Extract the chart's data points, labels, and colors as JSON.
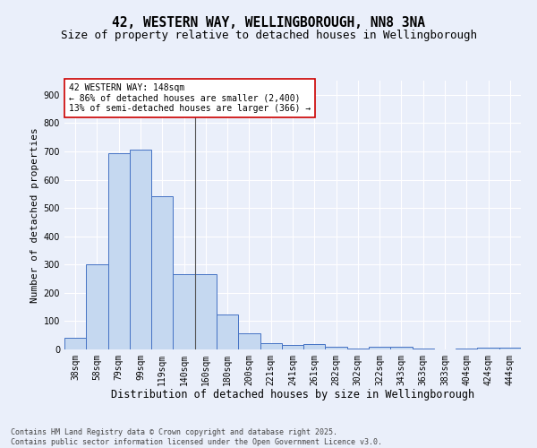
{
  "title1": "42, WESTERN WAY, WELLINGBOROUGH, NN8 3NA",
  "title2": "Size of property relative to detached houses in Wellingborough",
  "xlabel": "Distribution of detached houses by size in Wellingborough",
  "ylabel": "Number of detached properties",
  "categories": [
    "38sqm",
    "58sqm",
    "79sqm",
    "99sqm",
    "119sqm",
    "140sqm",
    "160sqm",
    "180sqm",
    "200sqm",
    "221sqm",
    "241sqm",
    "261sqm",
    "282sqm",
    "302sqm",
    "322sqm",
    "343sqm",
    "363sqm",
    "383sqm",
    "404sqm",
    "424sqm",
    "444sqm"
  ],
  "values": [
    42,
    300,
    695,
    706,
    540,
    265,
    265,
    122,
    57,
    22,
    15,
    18,
    8,
    2,
    10,
    10,
    2,
    1,
    2,
    5,
    6
  ],
  "bar_color": "#c5d8f0",
  "bar_edge_color": "#4472c4",
  "annotation_text": "42 WESTERN WAY: 148sqm\n← 86% of detached houses are smaller (2,400)\n13% of semi-detached houses are larger (366) →",
  "annotation_box_color": "#ffffff",
  "annotation_box_edge": "#cc0000",
  "vline_x": 5.5,
  "ylim": [
    0,
    950
  ],
  "yticks": [
    0,
    100,
    200,
    300,
    400,
    500,
    600,
    700,
    800,
    900
  ],
  "background_color": "#eaeffa",
  "plot_background": "#eaeffa",
  "footer1": "Contains HM Land Registry data © Crown copyright and database right 2025.",
  "footer2": "Contains public sector information licensed under the Open Government Licence v3.0.",
  "title1_fontsize": 10.5,
  "title2_fontsize": 9,
  "xlabel_fontsize": 8.5,
  "ylabel_fontsize": 8,
  "tick_fontsize": 7,
  "annotation_fontsize": 7,
  "footer_fontsize": 6
}
